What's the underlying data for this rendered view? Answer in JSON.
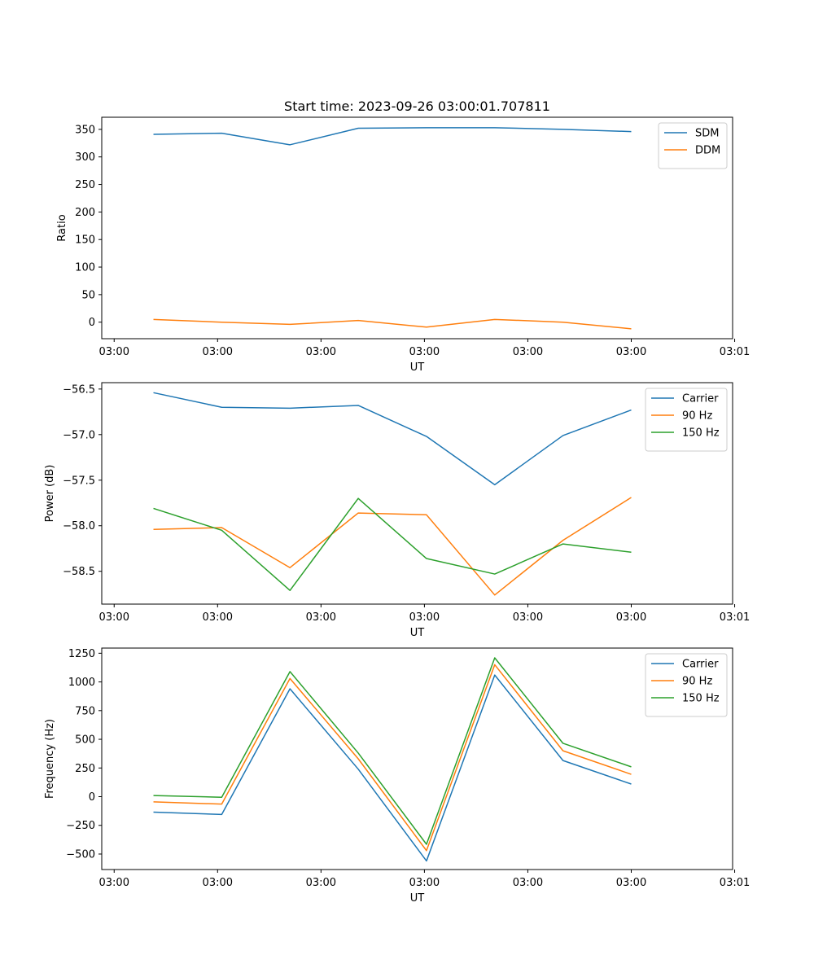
{
  "figure_title": "Start time: 2023-09-26 03:00:01.707811",
  "chart_data": [
    {
      "type": "line",
      "title": "Start time: 2023-09-26 03:00:01.707811",
      "xlabel": "UT",
      "ylabel": "Ratio",
      "x": [
        0.5,
        1.16,
        1.82,
        2.48,
        3.14,
        3.8,
        4.46,
        5.12
      ],
      "xlim": [
        0,
        6.1
      ],
      "xticks": [
        0.12,
        1.12,
        2.12,
        3.12,
        4.12,
        5.12,
        6.12
      ],
      "xtick_labels": [
        "03:00",
        "03:00",
        "03:00",
        "03:00",
        "03:00",
        "03:00",
        "03:01"
      ],
      "ylim": [
        -30,
        372
      ],
      "yticks": [
        0,
        50,
        100,
        150,
        200,
        250,
        300,
        350
      ],
      "ytick_labels": [
        "0",
        "50",
        "100",
        "150",
        "200",
        "250",
        "300",
        "350"
      ],
      "legend_position": "top-right",
      "series": [
        {
          "name": "SDM",
          "color": "#1f77b4",
          "values": [
            341,
            343,
            322,
            352,
            353,
            353,
            350,
            346
          ]
        },
        {
          "name": "DDM",
          "color": "#ff7f0e",
          "values": [
            5,
            0,
            -4,
            3,
            -9,
            5,
            0,
            -12
          ]
        }
      ]
    },
    {
      "type": "line",
      "title": "",
      "xlabel": "UT",
      "ylabel": "Power (dB)",
      "x": [
        0.5,
        1.16,
        1.82,
        2.48,
        3.14,
        3.8,
        4.46,
        5.12
      ],
      "xlim": [
        0,
        6.1
      ],
      "xticks": [
        0.12,
        1.12,
        2.12,
        3.12,
        4.12,
        5.12,
        6.12
      ],
      "xtick_labels": [
        "03:00",
        "03:00",
        "03:00",
        "03:00",
        "03:00",
        "03:00",
        "03:01"
      ],
      "ylim": [
        -58.86,
        -56.43
      ],
      "yticks": [
        -58.5,
        -58.0,
        -57.5,
        -57.0,
        -56.5
      ],
      "ytick_labels": [
        "−58.5",
        "−58.0",
        "−57.5",
        "−57.0",
        "−56.5"
      ],
      "legend_position": "top-right",
      "series": [
        {
          "name": "Carrier",
          "color": "#1f77b4",
          "values": [
            -56.54,
            -56.7,
            -56.71,
            -56.68,
            -57.02,
            -57.55,
            -57.01,
            -56.73
          ]
        },
        {
          "name": "90 Hz",
          "color": "#ff7f0e",
          "values": [
            -58.04,
            -58.02,
            -58.46,
            -57.86,
            -57.88,
            -58.76,
            -58.16,
            -57.69
          ]
        },
        {
          "name": "150 Hz",
          "color": "#2ca02c",
          "values": [
            -57.81,
            -58.05,
            -58.71,
            -57.7,
            -58.36,
            -58.53,
            -58.2,
            -58.29
          ]
        }
      ]
    },
    {
      "type": "line",
      "title": "",
      "xlabel": "UT",
      "ylabel": "Frequency (Hz)",
      "x": [
        0.5,
        1.16,
        1.82,
        2.48,
        3.14,
        3.8,
        4.46,
        5.12
      ],
      "xlim": [
        0,
        6.1
      ],
      "xticks": [
        0.12,
        1.12,
        2.12,
        3.12,
        4.12,
        5.12,
        6.12
      ],
      "xtick_labels": [
        "03:00",
        "03:00",
        "03:00",
        "03:00",
        "03:00",
        "03:00",
        "03:01"
      ],
      "ylim": [
        -635,
        1295
      ],
      "yticks": [
        -500,
        -250,
        0,
        250,
        500,
        750,
        1000,
        1250
      ],
      "ytick_labels": [
        "−500",
        "−250",
        "0",
        "250",
        "500",
        "750",
        "1000",
        "1250"
      ],
      "legend_position": "top-right",
      "series": [
        {
          "name": "Carrier",
          "color": "#1f77b4",
          "values": [
            -135,
            -155,
            940,
            240,
            -560,
            1060,
            315,
            110
          ]
        },
        {
          "name": "90 Hz",
          "color": "#ff7f0e",
          "values": [
            -45,
            -65,
            1030,
            330,
            -470,
            1150,
            400,
            195
          ]
        },
        {
          "name": "150 Hz",
          "color": "#2ca02c",
          "values": [
            10,
            -5,
            1090,
            380,
            -415,
            1210,
            465,
            260
          ]
        }
      ]
    }
  ]
}
